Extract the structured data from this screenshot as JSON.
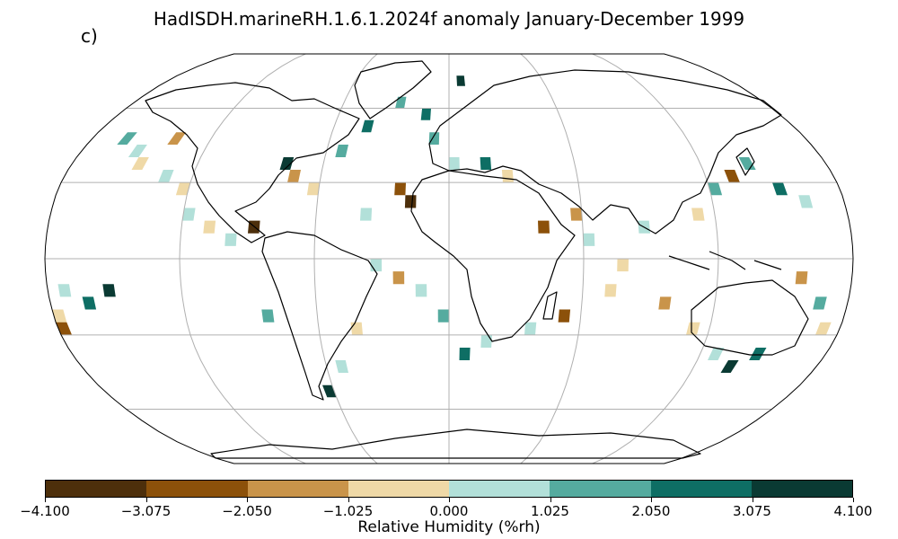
{
  "title": "HadISDH.marineRH.1.6.1.2024f anomaly January-December 1999",
  "panel_label": "c)",
  "colorbar": {
    "label": "Relative Humidity (%rh)",
    "tick_labels": [
      "−4.100",
      "−3.075",
      "−2.050",
      "−1.025",
      "0.000",
      "1.025",
      "2.050",
      "3.075",
      "4.100"
    ],
    "colors": [
      "#4d2f0b",
      "#8c510a",
      "#c9944a",
      "#efd9a7",
      "#b2e0d9",
      "#55ab9f",
      "#0e6e64",
      "#0a3a33"
    ]
  },
  "map": {
    "projection": "Robinson",
    "gridlines": true
  },
  "chart_data": {
    "type": "heatmap",
    "title": "HadISDH.marineRH.1.6.1.2024f anomaly January-December 1999",
    "colorbar_label": "Relative Humidity (%rh)",
    "value_range": [
      -4.1,
      4.1
    ],
    "bins": [
      -4.1,
      -3.075,
      -2.05,
      -1.025,
      0.0,
      1.025,
      2.05,
      3.075,
      4.1
    ],
    "grid_resolution_deg": 5,
    "cells": [
      {
        "lon": -162.5,
        "lat": 47.5,
        "v": 1.5
      },
      {
        "lon": -152.5,
        "lat": 42.5,
        "v": 0.5
      },
      {
        "lon": -147.5,
        "lat": 37.5,
        "v": -0.5
      },
      {
        "lon": -137.5,
        "lat": 47.5,
        "v": -1.5
      },
      {
        "lon": -132.5,
        "lat": 32.5,
        "v": 0.5
      },
      {
        "lon": -122.5,
        "lat": 27.5,
        "v": -0.5
      },
      {
        "lon": -117.5,
        "lat": 17.5,
        "v": 0.5
      },
      {
        "lon": -107.5,
        "lat": 12.5,
        "v": -0.5
      },
      {
        "lon": -97.5,
        "lat": 7.5,
        "v": 0.5
      },
      {
        "lon": -87.5,
        "lat": 12.5,
        "v": -3.2
      },
      {
        "lon": -77.5,
        "lat": 37.5,
        "v": 3.2
      },
      {
        "lon": -72.5,
        "lat": 32.5,
        "v": -1.5
      },
      {
        "lon": -62.5,
        "lat": 27.5,
        "v": -0.5
      },
      {
        "lon": -52.5,
        "lat": 42.5,
        "v": 1.5
      },
      {
        "lon": -42.5,
        "lat": 52.5,
        "v": 2.5
      },
      {
        "lon": -37.5,
        "lat": 17.5,
        "v": 0.5
      },
      {
        "lon": -27.5,
        "lat": 62.5,
        "v": 1.5
      },
      {
        "lon": -22.5,
        "lat": 27.5,
        "v": -2.5
      },
      {
        "lon": -17.5,
        "lat": 22.5,
        "v": -3.2
      },
      {
        "lon": -12.5,
        "lat": 57.5,
        "v": 2.5
      },
      {
        "lon": -7.5,
        "lat": 47.5,
        "v": 1.5
      },
      {
        "lon": 2.5,
        "lat": 37.5,
        "v": 0.5
      },
      {
        "lon": 7.5,
        "lat": 72.5,
        "v": 3.2
      },
      {
        "lon": 17.5,
        "lat": 37.5,
        "v": 2.5
      },
      {
        "lon": 27.5,
        "lat": 32.5,
        "v": -0.5
      },
      {
        "lon": 42.5,
        "lat": 12.5,
        "v": -2.5
      },
      {
        "lon": 57.5,
        "lat": 17.5,
        "v": -1.5
      },
      {
        "lon": 62.5,
        "lat": 7.5,
        "v": 0.5
      },
      {
        "lon": 77.5,
        "lat": -2.5,
        "v": -0.5
      },
      {
        "lon": 87.5,
        "lat": 12.5,
        "v": 0.5
      },
      {
        "lon": 112.5,
        "lat": 17.5,
        "v": -0.5
      },
      {
        "lon": 122.5,
        "lat": 27.5,
        "v": 1.5
      },
      {
        "lon": 132.5,
        "lat": 32.5,
        "v": -2.5
      },
      {
        "lon": 142.5,
        "lat": 37.5,
        "v": 1.5
      },
      {
        "lon": 152.5,
        "lat": 27.5,
        "v": 2.5
      },
      {
        "lon": 162.5,
        "lat": 22.5,
        "v": 0.5
      },
      {
        "lon": 157.5,
        "lat": -7.5,
        "v": -1.5
      },
      {
        "lon": 167.5,
        "lat": -17.5,
        "v": 1.5
      },
      {
        "lon": 172.5,
        "lat": -27.5,
        "v": -0.5
      },
      {
        "lon": 147.5,
        "lat": -37.5,
        "v": 2.5
      },
      {
        "lon": 137.5,
        "lat": -42.5,
        "v": 3.2
      },
      {
        "lon": 127.5,
        "lat": -37.5,
        "v": 0.5
      },
      {
        "lon": 112.5,
        "lat": -27.5,
        "v": -0.5
      },
      {
        "lon": 97.5,
        "lat": -17.5,
        "v": -1.5
      },
      {
        "lon": 72.5,
        "lat": -12.5,
        "v": -0.5
      },
      {
        "lon": 52.5,
        "lat": -22.5,
        "v": -2.5
      },
      {
        "lon": 37.5,
        "lat": -27.5,
        "v": 0.5
      },
      {
        "lon": 17.5,
        "lat": -32.5,
        "v": 0.5
      },
      {
        "lon": 7.5,
        "lat": -37.5,
        "v": 2.5
      },
      {
        "lon": -2.5,
        "lat": -22.5,
        "v": 1.5
      },
      {
        "lon": -12.5,
        "lat": -12.5,
        "v": 0.5
      },
      {
        "lon": -22.5,
        "lat": -7.5,
        "v": -1.5
      },
      {
        "lon": -32.5,
        "lat": -2.5,
        "v": 0.5
      },
      {
        "lon": -42.5,
        "lat": -27.5,
        "v": -0.5
      },
      {
        "lon": -52.5,
        "lat": -42.5,
        "v": 0.5
      },
      {
        "lon": -62.5,
        "lat": -52.5,
        "v": 3.2
      },
      {
        "lon": -82.5,
        "lat": -22.5,
        "v": 1.5
      },
      {
        "lon": -172.5,
        "lat": -12.5,
        "v": 0.5
      },
      {
        "lon": -177.5,
        "lat": -22.5,
        "v": -0.5
      },
      {
        "lon": -162.5,
        "lat": -17.5,
        "v": 2.5
      },
      {
        "lon": -152.5,
        "lat": -12.5,
        "v": 3.2
      },
      {
        "lon": -177.5,
        "lat": -27.5,
        "v": -2.5
      }
    ]
  }
}
